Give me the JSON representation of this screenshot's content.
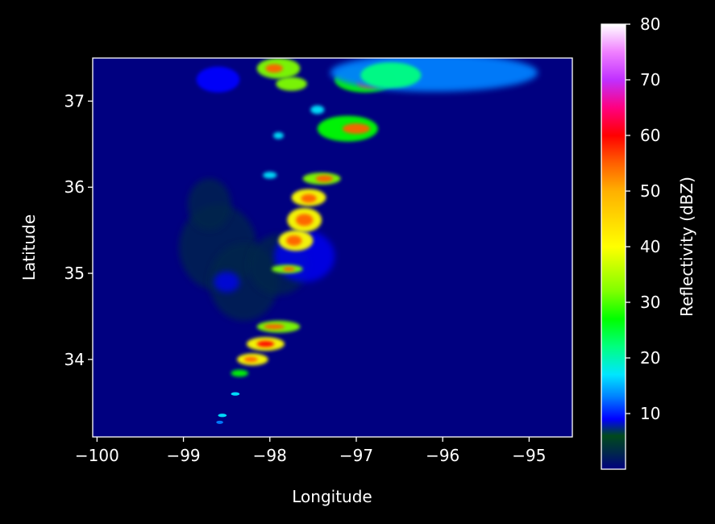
{
  "chart_data": {
    "type": "heatmap",
    "title": "",
    "xlabel": "Longitude",
    "ylabel": "Latitude",
    "xlim": [
      -100.05,
      -94.5
    ],
    "ylim": [
      33.1,
      37.5
    ],
    "xticks": [
      -100,
      -99,
      -98,
      -97,
      -96,
      -95
    ],
    "xtick_labels": [
      "−100",
      "−99",
      "−98",
      "−97",
      "−96",
      "−95"
    ],
    "yticks": [
      34,
      35,
      36,
      37
    ],
    "ytick_labels": [
      "34",
      "35",
      "36",
      "37"
    ],
    "background_color": "#000080",
    "grid": false,
    "colorbar": {
      "label": "Reflectivity (dBZ)",
      "range": [
        0,
        80
      ],
      "ticks": [
        10,
        20,
        30,
        40,
        50,
        60,
        70,
        80
      ],
      "tick_labels": [
        "10",
        "20",
        "30",
        "40",
        "50",
        "60",
        "70",
        "80"
      ],
      "colormap": [
        {
          "v": 0,
          "c": "#000080"
        },
        {
          "v": 3,
          "c": "#00284a"
        },
        {
          "v": 6,
          "c": "#004a1c"
        },
        {
          "v": 9,
          "c": "#0000ff"
        },
        {
          "v": 13,
          "c": "#0080ff"
        },
        {
          "v": 17,
          "c": "#00e6ff"
        },
        {
          "v": 22,
          "c": "#00ff80"
        },
        {
          "v": 27,
          "c": "#00ff00"
        },
        {
          "v": 32,
          "c": "#80ff00"
        },
        {
          "v": 40,
          "c": "#ffff00"
        },
        {
          "v": 50,
          "c": "#ffb000"
        },
        {
          "v": 55,
          "c": "#ff6000"
        },
        {
          "v": 60,
          "c": "#ff0000"
        },
        {
          "v": 65,
          "c": "#ff0080"
        },
        {
          "v": 70,
          "c": "#c030ff"
        },
        {
          "v": 75,
          "c": "#f080ff"
        },
        {
          "v": 80,
          "c": "#ffffff"
        }
      ]
    },
    "cells": [
      {
        "lon": -98.6,
        "lat": 35.3,
        "rlon": 0.45,
        "rlat": 0.5,
        "dbz": 4
      },
      {
        "lon": -98.3,
        "lat": 34.9,
        "rlon": 0.4,
        "rlat": 0.45,
        "dbz": 4
      },
      {
        "lon": -97.9,
        "lat": 35.1,
        "rlon": 0.35,
        "rlat": 0.35,
        "dbz": 5
      },
      {
        "lon": -98.7,
        "lat": 35.8,
        "rlon": 0.25,
        "rlat": 0.3,
        "dbz": 4
      },
      {
        "lon": -97.6,
        "lat": 35.2,
        "rlon": 0.35,
        "rlat": 0.3,
        "dbz": 9
      },
      {
        "lon": -98.5,
        "lat": 34.9,
        "rlon": 0.15,
        "rlat": 0.12,
        "dbz": 11
      },
      {
        "lon": -97.4,
        "lat": 36.1,
        "rlon": 0.22,
        "rlat": 0.07,
        "dbz": 35
      },
      {
        "lon": -97.37,
        "lat": 36.1,
        "rlon": 0.1,
        "rlat": 0.04,
        "dbz": 55
      },
      {
        "lon": -97.55,
        "lat": 35.88,
        "rlon": 0.2,
        "rlat": 0.1,
        "dbz": 40
      },
      {
        "lon": -97.55,
        "lat": 35.87,
        "rlon": 0.09,
        "rlat": 0.05,
        "dbz": 58
      },
      {
        "lon": -97.6,
        "lat": 35.62,
        "rlon": 0.2,
        "rlat": 0.14,
        "dbz": 40
      },
      {
        "lon": -97.6,
        "lat": 35.62,
        "rlon": 0.1,
        "rlat": 0.07,
        "dbz": 55
      },
      {
        "lon": -97.7,
        "lat": 35.38,
        "rlon": 0.2,
        "rlat": 0.12,
        "dbz": 40
      },
      {
        "lon": -97.72,
        "lat": 35.38,
        "rlon": 0.09,
        "rlat": 0.06,
        "dbz": 55
      },
      {
        "lon": -97.8,
        "lat": 35.05,
        "rlon": 0.18,
        "rlat": 0.05,
        "dbz": 38
      },
      {
        "lon": -97.78,
        "lat": 35.05,
        "rlon": 0.07,
        "rlat": 0.025,
        "dbz": 58
      },
      {
        "lon": -97.9,
        "lat": 34.38,
        "rlon": 0.25,
        "rlat": 0.07,
        "dbz": 38
      },
      {
        "lon": -97.95,
        "lat": 34.38,
        "rlon": 0.12,
        "rlat": 0.03,
        "dbz": 58
      },
      {
        "lon": -98.05,
        "lat": 34.18,
        "rlon": 0.22,
        "rlat": 0.08,
        "dbz": 40
      },
      {
        "lon": -98.05,
        "lat": 34.18,
        "rlon": 0.1,
        "rlat": 0.035,
        "dbz": 60
      },
      {
        "lon": -98.2,
        "lat": 34.0,
        "rlon": 0.18,
        "rlat": 0.07,
        "dbz": 40
      },
      {
        "lon": -98.22,
        "lat": 34.0,
        "rlon": 0.08,
        "rlat": 0.03,
        "dbz": 55
      },
      {
        "lon": -98.35,
        "lat": 33.84,
        "rlon": 0.1,
        "rlat": 0.04,
        "dbz": 30
      },
      {
        "lon": -98.4,
        "lat": 33.6,
        "rlon": 0.05,
        "rlat": 0.02,
        "dbz": 18
      },
      {
        "lon": -98.55,
        "lat": 33.35,
        "rlon": 0.05,
        "rlat": 0.02,
        "dbz": 18
      },
      {
        "lon": -98.58,
        "lat": 33.27,
        "rlon": 0.04,
        "rlat": 0.015,
        "dbz": 15
      },
      {
        "lon": -97.1,
        "lat": 36.68,
        "rlon": 0.35,
        "rlat": 0.15,
        "dbz": 30
      },
      {
        "lon": -97.0,
        "lat": 36.68,
        "rlon": 0.16,
        "rlat": 0.06,
        "dbz": 58
      },
      {
        "lon": -96.9,
        "lat": 37.25,
        "rlon": 0.35,
        "rlat": 0.15,
        "dbz": 30
      },
      {
        "lon": -96.85,
        "lat": 37.22,
        "rlon": 0.15,
        "rlat": 0.07,
        "dbz": 55
      },
      {
        "lon": -96.1,
        "lat": 37.33,
        "rlon": 1.2,
        "rlat": 0.22,
        "dbz": 14
      },
      {
        "lon": -96.6,
        "lat": 37.3,
        "rlon": 0.35,
        "rlat": 0.15,
        "dbz": 22
      },
      {
        "lon": -97.9,
        "lat": 37.38,
        "rlon": 0.25,
        "rlat": 0.12,
        "dbz": 35
      },
      {
        "lon": -97.95,
        "lat": 37.38,
        "rlon": 0.1,
        "rlat": 0.05,
        "dbz": 58
      },
      {
        "lon": -97.75,
        "lat": 37.2,
        "rlon": 0.18,
        "rlat": 0.08,
        "dbz": 35
      },
      {
        "lon": -98.6,
        "lat": 37.25,
        "rlon": 0.25,
        "rlat": 0.15,
        "dbz": 12
      },
      {
        "lon": -97.45,
        "lat": 36.9,
        "rlon": 0.08,
        "rlat": 0.05,
        "dbz": 20
      },
      {
        "lon": -97.9,
        "lat": 36.6,
        "rlon": 0.06,
        "rlat": 0.04,
        "dbz": 18
      },
      {
        "lon": -98.0,
        "lat": 36.14,
        "rlon": 0.08,
        "rlat": 0.04,
        "dbz": 20
      }
    ]
  }
}
